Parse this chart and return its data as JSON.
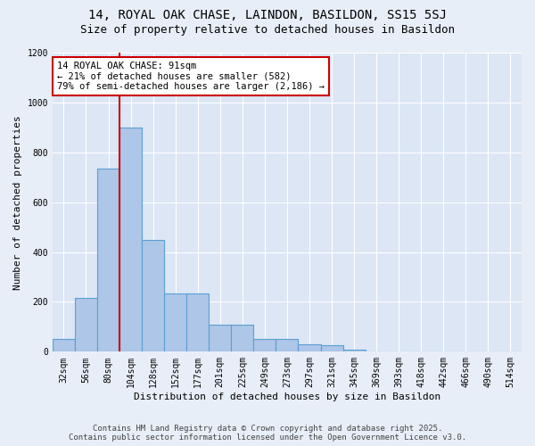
{
  "title": "14, ROYAL OAK CHASE, LAINDON, BASILDON, SS15 5SJ",
  "subtitle": "Size of property relative to detached houses in Basildon",
  "xlabel": "Distribution of detached houses by size in Basildon",
  "ylabel": "Number of detached properties",
  "footer_line1": "Contains HM Land Registry data © Crown copyright and database right 2025.",
  "footer_line2": "Contains public sector information licensed under the Open Government Licence v3.0.",
  "bar_categories": [
    "32sqm",
    "56sqm",
    "80sqm",
    "104sqm",
    "128sqm",
    "152sqm",
    "177sqm",
    "201sqm",
    "225sqm",
    "249sqm",
    "273sqm",
    "297sqm",
    "321sqm",
    "345sqm",
    "369sqm",
    "393sqm",
    "418sqm",
    "442sqm",
    "466sqm",
    "490sqm",
    "514sqm"
  ],
  "bar_values": [
    50,
    215,
    735,
    900,
    450,
    235,
    235,
    110,
    110,
    50,
    50,
    30,
    25,
    10,
    0,
    0,
    0,
    0,
    0,
    0,
    0
  ],
  "bar_color": "#aec6e8",
  "bar_edge_color": "#5a9fd4",
  "vline_x_index": 2.5,
  "annotation_title": "14 ROYAL OAK CHASE: 91sqm",
  "annotation_line1": "← 21% of detached houses are smaller (582)",
  "annotation_line2": "79% of semi-detached houses are larger (2,186) →",
  "annotation_box_color": "#ffffff",
  "annotation_box_edge_color": "#cc0000",
  "vline_color": "#cc0000",
  "ylim": [
    0,
    1200
  ],
  "yticks": [
    0,
    200,
    400,
    600,
    800,
    1000,
    1200
  ],
  "background_color": "#e8eef7",
  "plot_background_color": "#dce6f5",
  "grid_color": "#ffffff",
  "title_fontsize": 10,
  "subtitle_fontsize": 9,
  "axis_label_fontsize": 8,
  "tick_fontsize": 7,
  "annotation_fontsize": 7.5,
  "footer_fontsize": 6.5
}
